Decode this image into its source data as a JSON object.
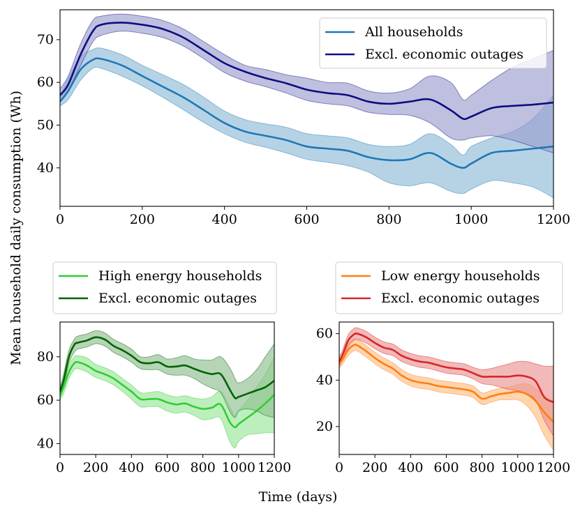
{
  "shared_ylabel": "Mean household daily consumption (Wh)",
  "shared_xlabel": "Time (days)",
  "chart_data": [
    {
      "id": "top",
      "type": "line",
      "xlim": [
        0,
        1200
      ],
      "ylim": [
        31,
        77
      ],
      "xticks": [
        0,
        200,
        400,
        600,
        800,
        1000,
        1200
      ],
      "yticks": [
        40,
        50,
        60,
        70
      ],
      "legend_position": "upper-right-inside",
      "series": [
        {
          "name": "All households",
          "color": "#1f77b4",
          "band_color": "#8fbbd9",
          "x": [
            0,
            20,
            50,
            80,
            100,
            150,
            200,
            250,
            300,
            350,
            400,
            450,
            500,
            550,
            600,
            650,
            700,
            750,
            800,
            850,
            900,
            950,
            980,
            1000,
            1050,
            1100,
            1150,
            1200
          ],
          "y": [
            55.5,
            58,
            63,
            65.3,
            65.5,
            64,
            61.5,
            59,
            56.5,
            53.5,
            50.5,
            48.5,
            47.5,
            46.5,
            45,
            44.5,
            44,
            42.5,
            41.8,
            42,
            43.5,
            41,
            40,
            41,
            43.5,
            44,
            44.5,
            45
          ],
          "upper": [
            56.5,
            61,
            66,
            67.7,
            68,
            66.5,
            64,
            61.8,
            59.5,
            56.5,
            53.3,
            51.3,
            50.3,
            49.5,
            48,
            47.5,
            47,
            45.5,
            45,
            45.5,
            48,
            45.5,
            43,
            45,
            47,
            48.5,
            51.5,
            57
          ],
          "lower": [
            54.5,
            56,
            60.5,
            63.3,
            63.3,
            61.5,
            59.2,
            56.5,
            53.6,
            50.6,
            48,
            46,
            44.8,
            43.5,
            42,
            41.3,
            40.5,
            39,
            36.5,
            35.8,
            36.5,
            34.5,
            34,
            35,
            37,
            36.5,
            35.5,
            33
          ]
        },
        {
          "name": "Excl. economic outages",
          "color": "#0d0d80",
          "band_color": "#9c9cd0",
          "x": [
            0,
            20,
            50,
            80,
            100,
            150,
            200,
            250,
            300,
            350,
            400,
            450,
            500,
            550,
            600,
            650,
            700,
            750,
            800,
            850,
            900,
            950,
            980,
            1000,
            1050,
            1100,
            1150,
            1200
          ],
          "y": [
            57,
            59.5,
            66.5,
            72,
            73.5,
            74,
            73.5,
            72.5,
            70.5,
            67.5,
            64.5,
            62.5,
            61,
            59.8,
            58.3,
            57.5,
            57,
            55.5,
            55,
            55.5,
            56,
            53.5,
            51.5,
            52,
            54,
            54.5,
            54.8,
            55.3
          ],
          "upper": [
            58.5,
            61.5,
            69,
            74.5,
            75.5,
            76,
            75.5,
            74.5,
            72.5,
            69.5,
            66.5,
            64,
            63,
            61.8,
            61,
            60,
            59.8,
            58,
            57.5,
            58.5,
            61.5,
            60,
            56,
            57,
            60.5,
            63.5,
            65.5,
            67.5
          ],
          "lower": [
            55.5,
            58,
            64,
            69.5,
            71,
            72,
            71.5,
            70.5,
            68.5,
            65.5,
            62.3,
            60.3,
            59,
            57.5,
            55.8,
            55,
            54.5,
            53,
            52.5,
            52.3,
            50.5,
            47,
            46.5,
            47,
            47.5,
            46.5,
            45,
            43.5
          ]
        }
      ]
    },
    {
      "id": "bottom-left",
      "type": "line",
      "xlim": [
        0,
        1200
      ],
      "ylim": [
        35,
        96
      ],
      "xticks": [
        0,
        200,
        400,
        600,
        800,
        1000,
        1200
      ],
      "yticks": [
        40,
        60,
        80
      ],
      "legend_position": "above",
      "series": [
        {
          "name": "High energy households",
          "color": "#33cc33",
          "band_color": "#99e699",
          "x": [
            0,
            20,
            50,
            80,
            100,
            150,
            200,
            250,
            300,
            350,
            400,
            450,
            500,
            550,
            600,
            650,
            700,
            750,
            800,
            850,
            900,
            950,
            980,
            1000,
            1050,
            1100,
            1150,
            1200
          ],
          "y": [
            62,
            66,
            73,
            77,
            77.5,
            76,
            73.5,
            72,
            70,
            67,
            64,
            60.5,
            60.5,
            60.5,
            59,
            58,
            58.5,
            57,
            56,
            56.5,
            58,
            50,
            47.5,
            49,
            52,
            55,
            58.5,
            62.5
          ],
          "upper": [
            64,
            69,
            76,
            80,
            80.5,
            79.5,
            76.5,
            75,
            73,
            70,
            67,
            63.5,
            63.5,
            64,
            62.5,
            61.5,
            62,
            61,
            60.5,
            61.5,
            64,
            57,
            53,
            55,
            60,
            66,
            72,
            80
          ],
          "lower": [
            60,
            63,
            70,
            74,
            74.5,
            73,
            70.5,
            69,
            67,
            64,
            60.5,
            57,
            57,
            57,
            55,
            54,
            54.5,
            53,
            51,
            51.5,
            51.5,
            41,
            38,
            41,
            44,
            44.5,
            45,
            45
          ]
        },
        {
          "name": "Excl. economic outages",
          "color": "#006400",
          "band_color": "#8fbf8f",
          "x": [
            0,
            20,
            50,
            80,
            100,
            150,
            200,
            250,
            300,
            350,
            400,
            450,
            500,
            550,
            600,
            650,
            700,
            750,
            800,
            850,
            900,
            950,
            980,
            1000,
            1050,
            1100,
            1150,
            1200
          ],
          "y": [
            64,
            69,
            80,
            85.5,
            86.5,
            87.5,
            89,
            88,
            85,
            83,
            80.5,
            77.5,
            77,
            77.5,
            75.5,
            75.5,
            76,
            74.5,
            73,
            72,
            72,
            65,
            61,
            61.5,
            63,
            64.5,
            66,
            69
          ],
          "upper": [
            66,
            72,
            83,
            88,
            89.5,
            90.5,
            92,
            91,
            88,
            86,
            83.5,
            80,
            80,
            81,
            79,
            79.5,
            80.5,
            79,
            78.5,
            78.5,
            80,
            75,
            70,
            68,
            70,
            74,
            80,
            86
          ],
          "lower": [
            62,
            66,
            77,
            82,
            83.5,
            84.5,
            86,
            85,
            82,
            80,
            77.5,
            74.5,
            74,
            74,
            72,
            71.5,
            71.5,
            70,
            67.5,
            65.5,
            63.5,
            55,
            52,
            55,
            56,
            55,
            53,
            52
          ]
        }
      ]
    },
    {
      "id": "bottom-right",
      "type": "line",
      "xlim": [
        0,
        1200
      ],
      "ylim": [
        8,
        65
      ],
      "xticks": [
        0,
        200,
        400,
        600,
        800,
        1000,
        1200
      ],
      "yticks": [
        20,
        40,
        60
      ],
      "legend_position": "above",
      "series": [
        {
          "name": "Low energy households",
          "color": "#ff7f0e",
          "band_color": "#ffbf86",
          "x": [
            0,
            20,
            50,
            80,
            100,
            150,
            200,
            250,
            300,
            350,
            400,
            450,
            500,
            550,
            600,
            650,
            700,
            750,
            800,
            850,
            900,
            950,
            1000,
            1050,
            1100,
            1150,
            1200
          ],
          "y": [
            47,
            49,
            53,
            55,
            55,
            52.5,
            49.5,
            47,
            45,
            42,
            40,
            39,
            38.5,
            37.5,
            37,
            36.5,
            36,
            35,
            32,
            33,
            34,
            34.5,
            35,
            34,
            31,
            26,
            22
          ],
          "upper": [
            49,
            51,
            55.5,
            57.5,
            57.5,
            55,
            52,
            49.5,
            47.5,
            44.5,
            42.5,
            41.5,
            41,
            40,
            39.5,
            39,
            38.5,
            37.5,
            34.5,
            35.5,
            36.5,
            37,
            38,
            38.5,
            36.5,
            33,
            31
          ],
          "lower": [
            45,
            47,
            50.5,
            52.5,
            52.5,
            50,
            47,
            44.5,
            42.5,
            39.5,
            37.5,
            36.5,
            36,
            35,
            34.5,
            34,
            33.5,
            32.5,
            29.5,
            30.5,
            31.5,
            31.5,
            31.5,
            29,
            24,
            16,
            10
          ]
        },
        {
          "name": "Excl. economic outages",
          "color": "#d62728",
          "band_color": "#eb9393",
          "x": [
            0,
            20,
            50,
            80,
            100,
            150,
            200,
            250,
            300,
            350,
            400,
            450,
            500,
            550,
            600,
            650,
            700,
            750,
            800,
            850,
            900,
            950,
            1000,
            1050,
            1100,
            1150,
            1200
          ],
          "y": [
            48,
            51,
            57,
            59.5,
            60,
            58.5,
            56,
            54,
            53,
            50.5,
            49,
            48,
            47.5,
            46.5,
            45.5,
            45,
            44.5,
            43,
            41.5,
            41.5,
            41.5,
            41.5,
            42,
            41.5,
            39.5,
            32.5,
            30.5
          ],
          "upper": [
            50,
            53,
            59.5,
            62,
            62.5,
            61,
            58.5,
            56.5,
            55.5,
            53,
            51.5,
            50.5,
            50,
            49,
            48,
            47.5,
            47,
            45.5,
            44.5,
            45,
            46,
            47,
            48,
            48,
            47,
            46,
            46
          ],
          "lower": [
            46,
            49,
            54.5,
            57,
            57.5,
            56,
            53.5,
            51.5,
            50.5,
            48,
            46.5,
            45.5,
            45,
            44,
            43,
            42.5,
            42,
            40.5,
            38.5,
            38,
            37,
            36,
            35.5,
            34,
            31.5,
            22.5,
            16
          ]
        }
      ]
    }
  ]
}
